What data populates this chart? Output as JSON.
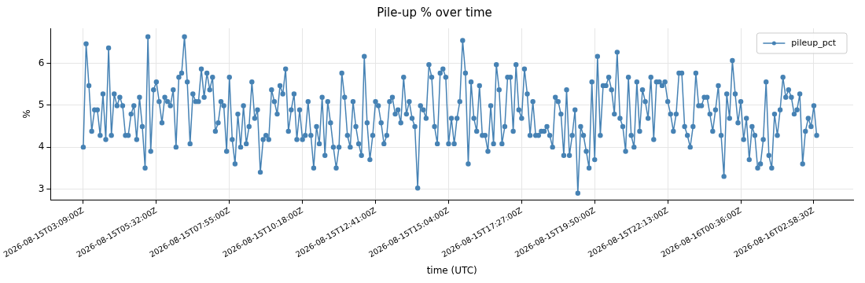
{
  "chart_data": {
    "type": "line",
    "title": "Pile-up % over time",
    "xlabel": "time (UTC)",
    "ylabel": "%",
    "x": [
      "2026-08-15T03:09:00",
      "2026-08-15T03:14:30",
      "2026-08-15T03:20:00",
      "2026-08-15T03:25:30",
      "2026-08-15T03:31:00",
      "2026-08-15T03:36:30",
      "2026-08-15T03:42:00",
      "2026-08-15T03:47:30",
      "2026-08-15T03:53:00",
      "2026-08-15T03:58:30",
      "2026-08-15T04:04:00",
      "2026-08-15T04:09:30",
      "2026-08-15T04:15:00",
      "2026-08-15T04:20:30",
      "2026-08-15T04:26:00",
      "2026-08-15T04:31:30",
      "2026-08-15T04:37:00",
      "2026-08-15T04:42:30",
      "2026-08-15T04:48:00",
      "2026-08-15T04:53:30",
      "2026-08-15T04:59:00",
      "2026-08-15T05:04:30",
      "2026-08-15T05:10:00",
      "2026-08-15T05:15:30",
      "2026-08-15T05:21:00",
      "2026-08-15T05:26:30",
      "2026-08-15T05:32:00",
      "2026-08-15T05:37:30",
      "2026-08-15T05:43:00",
      "2026-08-15T05:48:30",
      "2026-08-15T05:54:00",
      "2026-08-15T05:59:30",
      "2026-08-15T06:05:00",
      "2026-08-15T06:10:30",
      "2026-08-15T06:16:00",
      "2026-08-15T06:21:30",
      "2026-08-15T06:27:00",
      "2026-08-15T06:32:30",
      "2026-08-15T06:38:00",
      "2026-08-15T06:43:30",
      "2026-08-15T06:49:00",
      "2026-08-15T06:54:30",
      "2026-08-15T07:00:00",
      "2026-08-15T07:05:30",
      "2026-08-15T07:11:00",
      "2026-08-15T07:16:30",
      "2026-08-15T07:22:00",
      "2026-08-15T07:27:30",
      "2026-08-15T07:33:00",
      "2026-08-15T07:38:30",
      "2026-08-15T07:44:00",
      "2026-08-15T07:49:30",
      "2026-08-15T07:55:00",
      "2026-08-15T08:00:30",
      "2026-08-15T08:06:00",
      "2026-08-15T08:11:30",
      "2026-08-15T08:17:00",
      "2026-08-15T08:22:30",
      "2026-08-15T08:28:00",
      "2026-08-15T08:33:30",
      "2026-08-15T08:39:00",
      "2026-08-15T08:44:30",
      "2026-08-15T08:50:00",
      "2026-08-15T08:55:30",
      "2026-08-15T09:01:00",
      "2026-08-15T09:06:30",
      "2026-08-15T09:12:00",
      "2026-08-15T09:17:30",
      "2026-08-15T09:23:00",
      "2026-08-15T09:28:30",
      "2026-08-15T09:34:00",
      "2026-08-15T09:39:30",
      "2026-08-15T09:45:00",
      "2026-08-15T09:50:30",
      "2026-08-15T09:56:00",
      "2026-08-15T10:01:30",
      "2026-08-15T10:07:00",
      "2026-08-15T10:12:30",
      "2026-08-15T10:18:00",
      "2026-08-15T10:23:30",
      "2026-08-15T10:29:00",
      "2026-08-15T10:34:30",
      "2026-08-15T10:40:00",
      "2026-08-15T10:45:30",
      "2026-08-15T10:51:00",
      "2026-08-15T10:56:30",
      "2026-08-15T11:02:00",
      "2026-08-15T11:07:30",
      "2026-08-15T11:13:00",
      "2026-08-15T11:18:30",
      "2026-08-15T11:24:00",
      "2026-08-15T11:29:30",
      "2026-08-15T11:35:00",
      "2026-08-15T11:40:30",
      "2026-08-15T11:46:00",
      "2026-08-15T11:51:30",
      "2026-08-15T11:57:00",
      "2026-08-15T12:02:30",
      "2026-08-15T12:08:00",
      "2026-08-15T12:13:30",
      "2026-08-15T12:19:00",
      "2026-08-15T12:24:30",
      "2026-08-15T12:30:00",
      "2026-08-15T12:35:30",
      "2026-08-15T12:41:00",
      "2026-08-15T12:46:30",
      "2026-08-15T12:52:00",
      "2026-08-15T12:57:30",
      "2026-08-15T13:03:00",
      "2026-08-15T13:08:30",
      "2026-08-15T13:14:00",
      "2026-08-15T13:19:30",
      "2026-08-15T13:25:00",
      "2026-08-15T13:30:30",
      "2026-08-15T13:36:00",
      "2026-08-15T13:41:30",
      "2026-08-15T13:47:00",
      "2026-08-15T13:52:30",
      "2026-08-15T13:58:00",
      "2026-08-15T14:03:30",
      "2026-08-15T14:09:00",
      "2026-08-15T14:14:30",
      "2026-08-15T14:20:00",
      "2026-08-15T14:25:30",
      "2026-08-15T14:31:00",
      "2026-08-15T14:36:30",
      "2026-08-15T14:42:00",
      "2026-08-15T14:47:30",
      "2026-08-15T14:53:00",
      "2026-08-15T14:58:30",
      "2026-08-15T15:04:00",
      "2026-08-15T15:09:30",
      "2026-08-15T15:15:00",
      "2026-08-15T15:20:30",
      "2026-08-15T15:26:00",
      "2026-08-15T15:31:30",
      "2026-08-15T15:37:00",
      "2026-08-15T15:42:30",
      "2026-08-15T15:48:00",
      "2026-08-15T15:53:30",
      "2026-08-15T15:59:00",
      "2026-08-15T16:04:30",
      "2026-08-15T16:10:00",
      "2026-08-15T16:15:30",
      "2026-08-15T16:21:00",
      "2026-08-15T16:26:30",
      "2026-08-15T16:32:00",
      "2026-08-15T16:37:30",
      "2026-08-15T16:43:00",
      "2026-08-15T16:48:30",
      "2026-08-15T16:54:00",
      "2026-08-15T16:59:30",
      "2026-08-15T17:05:00",
      "2026-08-15T17:10:30",
      "2026-08-15T17:16:00",
      "2026-08-15T17:21:30",
      "2026-08-15T17:27:00",
      "2026-08-15T17:32:30",
      "2026-08-15T17:38:00",
      "2026-08-15T17:43:30",
      "2026-08-15T17:49:00",
      "2026-08-15T17:54:30",
      "2026-08-15T18:00:00",
      "2026-08-15T18:05:30",
      "2026-08-15T18:11:00",
      "2026-08-15T18:16:30",
      "2026-08-15T18:22:00",
      "2026-08-15T18:27:30",
      "2026-08-15T18:33:00",
      "2026-08-15T18:38:30",
      "2026-08-15T18:44:00",
      "2026-08-15T18:49:30",
      "2026-08-15T18:55:00",
      "2026-08-15T19:00:30",
      "2026-08-15T19:06:00",
      "2026-08-15T19:11:30",
      "2026-08-15T19:17:00",
      "2026-08-15T19:22:30",
      "2026-08-15T19:28:00",
      "2026-08-15T19:33:30",
      "2026-08-15T19:39:00",
      "2026-08-15T19:44:30",
      "2026-08-15T19:50:00",
      "2026-08-15T19:55:30",
      "2026-08-15T20:01:00",
      "2026-08-15T20:06:30",
      "2026-08-15T20:12:00",
      "2026-08-15T20:17:30",
      "2026-08-15T20:23:00",
      "2026-08-15T20:28:30",
      "2026-08-15T20:34:00",
      "2026-08-15T20:39:30",
      "2026-08-15T20:45:00",
      "2026-08-15T20:50:30",
      "2026-08-15T20:56:00",
      "2026-08-15T21:01:30",
      "2026-08-15T21:07:00",
      "2026-08-15T21:12:30",
      "2026-08-15T21:18:00",
      "2026-08-15T21:23:30",
      "2026-08-15T21:29:00",
      "2026-08-15T21:34:30",
      "2026-08-15T21:40:00",
      "2026-08-15T21:45:30",
      "2026-08-15T21:51:00",
      "2026-08-15T21:56:30",
      "2026-08-15T22:02:00",
      "2026-08-15T22:07:30",
      "2026-08-15T22:13:00",
      "2026-08-15T22:18:30",
      "2026-08-15T22:24:00",
      "2026-08-15T22:29:30",
      "2026-08-15T22:35:00",
      "2026-08-15T22:40:30",
      "2026-08-15T22:46:00",
      "2026-08-15T22:51:30",
      "2026-08-15T22:57:00",
      "2026-08-15T23:02:30",
      "2026-08-15T23:08:00",
      "2026-08-15T23:13:30",
      "2026-08-15T23:19:00",
      "2026-08-15T23:24:30",
      "2026-08-15T23:30:00",
      "2026-08-15T23:35:30",
      "2026-08-15T23:41:00",
      "2026-08-15T23:46:30",
      "2026-08-15T23:52:00",
      "2026-08-15T23:57:30",
      "2026-08-16T00:03:00",
      "2026-08-16T00:08:30",
      "2026-08-16T00:14:00",
      "2026-08-16T00:19:30",
      "2026-08-16T00:25:00",
      "2026-08-16T00:30:30",
      "2026-08-16T00:36:00",
      "2026-08-16T00:41:30",
      "2026-08-16T00:47:00",
      "2026-08-16T00:52:30",
      "2026-08-16T00:58:00",
      "2026-08-16T01:03:30",
      "2026-08-16T01:09:00",
      "2026-08-16T01:14:30",
      "2026-08-16T01:20:00",
      "2026-08-16T01:25:30",
      "2026-08-16T01:31:00",
      "2026-08-16T01:36:30",
      "2026-08-16T01:42:00",
      "2026-08-16T01:47:30",
      "2026-08-16T01:53:00",
      "2026-08-16T01:58:30",
      "2026-08-16T02:04:00",
      "2026-08-16T02:09:30",
      "2026-08-16T02:15:00",
      "2026-08-16T02:20:30",
      "2026-08-16T02:26:00",
      "2026-08-16T02:31:30",
      "2026-08-16T02:37:00",
      "2026-08-16T02:42:30",
      "2026-08-16T02:48:00",
      "2026-08-16T02:53:30",
      "2026-08-16T02:59:00",
      "2026-08-16T03:04:30"
    ],
    "series": [
      {
        "name": "pileup_pct",
        "color": "#4682b4",
        "values": [
          4.0,
          6.47,
          5.47,
          4.38,
          4.89,
          4.89,
          4.28,
          5.27,
          4.18,
          6.37,
          4.28,
          5.27,
          4.99,
          5.19,
          4.99,
          4.28,
          4.28,
          4.79,
          4.99,
          4.18,
          5.19,
          4.49,
          3.5,
          6.64,
          3.9,
          5.37,
          5.56,
          5.09,
          4.58,
          5.19,
          5.09,
          4.99,
          5.37,
          4.0,
          5.67,
          5.77,
          6.64,
          5.56,
          4.08,
          5.27,
          5.09,
          5.09,
          5.87,
          5.19,
          5.77,
          5.37,
          5.67,
          4.38,
          4.58,
          5.09,
          4.99,
          3.9,
          5.67,
          4.18,
          3.6,
          4.79,
          4.0,
          4.99,
          4.08,
          4.49,
          5.56,
          4.69,
          4.89,
          3.4,
          4.18,
          4.28,
          4.18,
          5.37,
          5.09,
          4.79,
          5.47,
          5.27,
          5.87,
          4.38,
          4.89,
          5.27,
          4.18,
          4.89,
          4.18,
          4.28,
          5.09,
          4.28,
          3.5,
          4.49,
          4.08,
          5.19,
          3.8,
          5.09,
          4.58,
          4.0,
          3.5,
          4.0,
          5.77,
          5.19,
          4.28,
          4.0,
          5.09,
          4.49,
          4.08,
          3.8,
          6.17,
          4.58,
          3.7,
          4.28,
          5.09,
          4.99,
          4.58,
          4.08,
          4.28,
          5.09,
          5.19,
          4.79,
          4.89,
          4.58,
          5.67,
          4.79,
          5.09,
          4.69,
          4.49,
          3.02,
          4.99,
          4.89,
          4.69,
          5.97,
          5.67,
          4.49,
          4.08,
          5.77,
          5.87,
          5.67,
          4.08,
          4.69,
          4.08,
          4.69,
          5.09,
          6.55,
          5.77,
          3.6,
          5.56,
          4.69,
          4.38,
          5.47,
          4.28,
          4.28,
          3.9,
          4.99,
          4.08,
          5.97,
          5.37,
          4.08,
          4.49,
          5.67,
          5.67,
          4.38,
          5.97,
          4.89,
          4.69,
          5.87,
          5.27,
          4.28,
          5.09,
          4.28,
          4.28,
          4.38,
          4.38,
          4.49,
          4.28,
          4.0,
          5.19,
          5.09,
          4.79,
          3.8,
          5.37,
          3.8,
          4.28,
          4.89,
          2.9,
          4.49,
          4.28,
          3.9,
          3.5,
          5.56,
          3.7,
          6.17,
          4.28,
          5.47,
          5.47,
          5.67,
          5.37,
          4.79,
          6.27,
          4.69,
          4.49,
          3.9,
          5.67,
          4.28,
          4.0,
          5.56,
          4.38,
          5.37,
          5.09,
          4.69,
          5.67,
          4.18,
          5.56,
          5.56,
          5.47,
          5.56,
          5.09,
          4.79,
          4.38,
          4.79,
          5.77,
          5.77,
          4.49,
          4.28,
          4.0,
          4.49,
          5.77,
          4.99,
          4.99,
          5.19,
          5.19,
          4.79,
          4.38,
          4.89,
          5.47,
          4.28,
          3.3,
          5.27,
          4.69,
          6.07,
          5.27,
          4.58,
          5.09,
          4.18,
          4.69,
          3.7,
          4.49,
          4.28,
          3.5,
          3.6,
          4.18,
          5.56,
          3.8,
          3.5,
          4.79,
          4.28,
          4.89,
          5.67,
          5.19,
          5.37,
          5.19,
          4.79,
          4.89,
          5.27,
          3.6,
          4.38,
          4.69,
          4.49,
          4.99,
          4.28
        ]
      }
    ],
    "xlim": [
      "2026-08-15T02:05",
      "2026-08-16T04:16"
    ],
    "xticks": [
      {
        "value": "2026-08-15T03:09",
        "label": "2026-08-15T03:09:00Z"
      },
      {
        "value": "2026-08-15T05:32",
        "label": "2026-08-15T05:32:00Z"
      },
      {
        "value": "2026-08-15T07:55",
        "label": "2026-08-15T07:55:00Z"
      },
      {
        "value": "2026-08-15T10:18",
        "label": "2026-08-15T10:18:00Z"
      },
      {
        "value": "2026-08-15T12:41",
        "label": "2026-08-15T12:41:00Z"
      },
      {
        "value": "2026-08-15T15:04",
        "label": "2026-08-15T15:04:00Z"
      },
      {
        "value": "2026-08-15T17:27",
        "label": "2026-08-15T17:27:00Z"
      },
      {
        "value": "2026-08-15T19:50",
        "label": "2026-08-15T19:50:00Z"
      },
      {
        "value": "2026-08-15T22:13",
        "label": "2026-08-15T22:13:00Z"
      },
      {
        "value": "2026-08-16T00:36",
        "label": "2026-08-16T00:36:00Z"
      },
      {
        "value": "2026-08-16T02:58:30",
        "label": "2026-08-16T02:58:30Z"
      }
    ],
    "ylim": [
      2.74,
      6.84
    ],
    "yticks": [
      3,
      4,
      5,
      6
    ],
    "grid": true,
    "legend": "top right",
    "marker": "circle"
  }
}
